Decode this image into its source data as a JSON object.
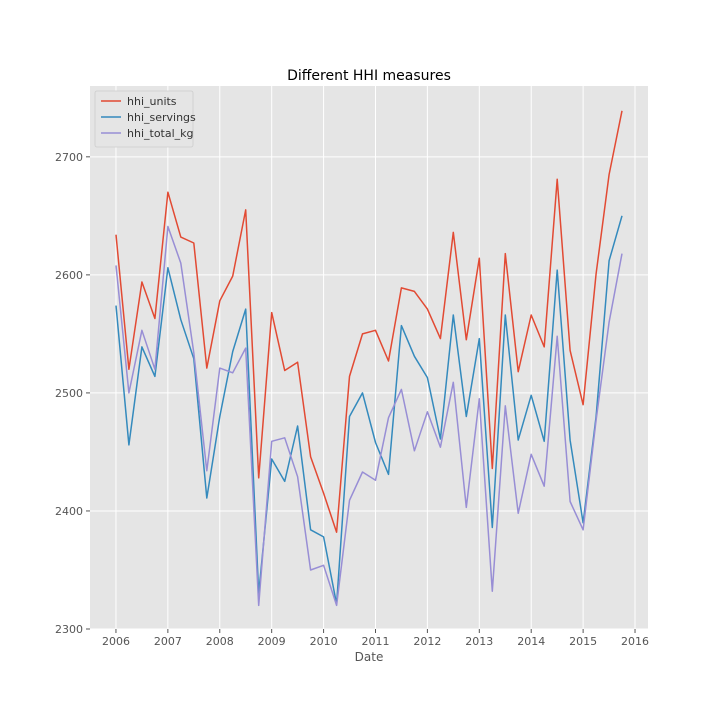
{
  "chart_data": {
    "type": "line",
    "title": "Different HHI measures",
    "xlabel": "Date",
    "ylabel": "",
    "xlim": [
      2005.5,
      2016.25
    ],
    "ylim": [
      2300,
      2760
    ],
    "x_ticks": [
      2006,
      2007,
      2008,
      2009,
      2010,
      2011,
      2012,
      2013,
      2014,
      2015,
      2016
    ],
    "x_tick_labels": [
      "2006",
      "2007",
      "2008",
      "2009",
      "2010",
      "2011",
      "2012",
      "2013",
      "2014",
      "2015",
      "2016"
    ],
    "y_ticks": [
      2300,
      2400,
      2500,
      2600,
      2700
    ],
    "y_tick_labels": [
      "2300",
      "2400",
      "2500",
      "2600",
      "2700"
    ],
    "grid": true,
    "legend_position": "top-left",
    "x": [
      2006.0,
      2006.25,
      2006.5,
      2006.75,
      2007.0,
      2007.25,
      2007.5,
      2007.75,
      2008.0,
      2008.25,
      2008.5,
      2008.75,
      2009.0,
      2009.25,
      2009.5,
      2009.75,
      2010.0,
      2010.25,
      2010.5,
      2010.75,
      2011.0,
      2011.25,
      2011.5,
      2011.75,
      2012.0,
      2012.25,
      2012.5,
      2012.75,
      2013.0,
      2013.25,
      2013.5,
      2013.75,
      2014.0,
      2014.25,
      2014.5,
      2014.75,
      2015.0,
      2015.25,
      2015.5,
      2015.75
    ],
    "series": [
      {
        "name": "hhi_units",
        "color": "#e24a33",
        "values": [
          2634,
          2520,
          2594,
          2563,
          2670,
          2632,
          2627,
          2521,
          2578,
          2599,
          2655,
          2428,
          2568,
          2519,
          2526,
          2446,
          2415,
          2382,
          2514,
          2550,
          2553,
          2527,
          2589,
          2586,
          2571,
          2546,
          2636,
          2545,
          2614,
          2436,
          2618,
          2518,
          2566,
          2539,
          2681,
          2536,
          2490,
          2601,
          2685,
          2739
        ]
      },
      {
        "name": "hhi_servings",
        "color": "#348abd",
        "values": [
          2574,
          2456,
          2539,
          2514,
          2606,
          2562,
          2529,
          2411,
          2480,
          2535,
          2571,
          2330,
          2444,
          2425,
          2472,
          2384,
          2378,
          2321,
          2480,
          2500,
          2458,
          2431,
          2557,
          2531,
          2513,
          2461,
          2566,
          2480,
          2546,
          2386,
          2566,
          2460,
          2498,
          2459,
          2604,
          2460,
          2390,
          2480,
          2612,
          2650
        ]
      },
      {
        "name": "hhi_total_kg",
        "color": "#988ed5",
        "values": [
          2608,
          2500,
          2553,
          2520,
          2641,
          2610,
          2534,
          2434,
          2521,
          2517,
          2538,
          2320,
          2459,
          2462,
          2429,
          2350,
          2354,
          2320,
          2409,
          2433,
          2426,
          2479,
          2503,
          2451,
          2484,
          2454,
          2509,
          2403,
          2495,
          2332,
          2489,
          2398,
          2448,
          2421,
          2548,
          2408,
          2384,
          2477,
          2560,
          2618
        ]
      }
    ]
  }
}
